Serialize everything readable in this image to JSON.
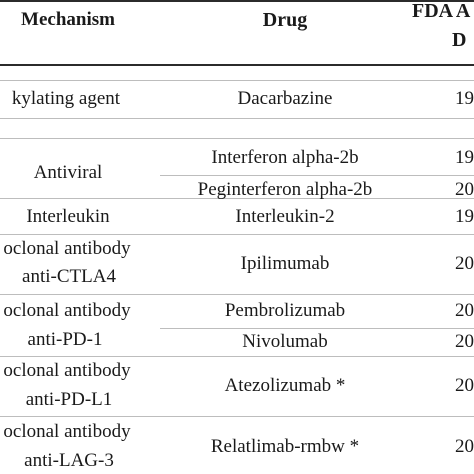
{
  "headers": {
    "mechanism": "Mechanism",
    "drug": "Drug",
    "fda_line1": "FDA A",
    "fda_line2": "D"
  },
  "rows": {
    "r1": {
      "mechanism": "kylating agent",
      "drug": "Dacarbazine",
      "year": "19"
    },
    "r2": {
      "mechanism": "Antiviral",
      "drug_a": "Interferon alpha-2b",
      "year_a": "19",
      "drug_b": "Peginterferon alpha-2b",
      "year_b": "20"
    },
    "r3": {
      "mechanism": "Interleukin",
      "drug": "Interleukin-2",
      "year": "19"
    },
    "r4": {
      "mechanism_1": "oclonal antibody",
      "mechanism_2": "anti-CTLA4",
      "drug": "Ipilimumab",
      "year": "20"
    },
    "r5": {
      "mechanism_1": "oclonal antibody",
      "mechanism_2": "anti-PD-1",
      "drug_a": "Pembrolizumab",
      "year_a": "20",
      "drug_b": "Nivolumab",
      "year_b": "20"
    },
    "r6": {
      "mechanism_1": "oclonal antibody",
      "mechanism_2": "anti-PD-L1",
      "drug": "Atezolizumab *",
      "year": "20"
    },
    "r7": {
      "mechanism_1": "oclonal antibody",
      "mechanism_2": "anti-LAG-3",
      "drug": "Relatlimab-rmbw *",
      "year": "20"
    }
  }
}
